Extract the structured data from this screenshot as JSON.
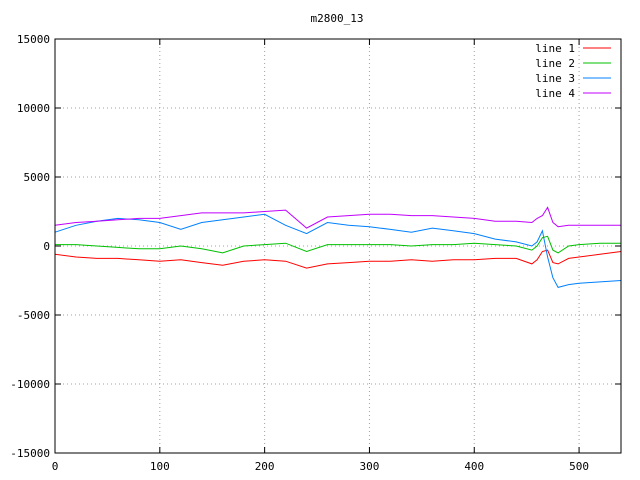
{
  "chart_data": {
    "type": "line",
    "title": "m2800_13",
    "xlabel": "",
    "ylabel": "",
    "xlim": [
      0,
      540
    ],
    "ylim": [
      -15000,
      15000
    ],
    "xticks": [
      "0",
      "100",
      "200",
      "300",
      "400",
      "500"
    ],
    "yticks": [
      "15000",
      "10000",
      "5000",
      "0",
      "-5000",
      "-10000",
      "-15000"
    ],
    "grid": true,
    "legend_position": "top-right",
    "colors": {
      "line1": "#ff0000",
      "line2": "#00c000",
      "line3": "#0080ff",
      "line4": "#c000ff"
    },
    "x": [
      0,
      20,
      40,
      60,
      80,
      100,
      120,
      140,
      160,
      180,
      200,
      220,
      240,
      260,
      280,
      300,
      320,
      340,
      360,
      380,
      400,
      420,
      440,
      455,
      460,
      465,
      470,
      475,
      480,
      490,
      500,
      520,
      540
    ],
    "series": [
      {
        "name": "line 1",
        "values": [
          -600,
          -800,
          -900,
          -900,
          -1000,
          -1100,
          -1000,
          -1200,
          -1400,
          -1100,
          -1000,
          -1100,
          -1600,
          -1300,
          -1200,
          -1100,
          -1100,
          -1000,
          -1100,
          -1000,
          -1000,
          -900,
          -900,
          -1300,
          -1000,
          -400,
          -300,
          -1200,
          -1300,
          -900,
          -800,
          -600,
          -400
        ]
      },
      {
        "name": "line 2",
        "values": [
          100,
          100,
          0,
          -100,
          -200,
          -200,
          0,
          -200,
          -500,
          0,
          100,
          200,
          -400,
          100,
          100,
          100,
          100,
          0,
          100,
          100,
          200,
          100,
          0,
          -300,
          0,
          600,
          700,
          -300,
          -500,
          0,
          100,
          200,
          200
        ]
      },
      {
        "name": "line 3",
        "values": [
          1000,
          1500,
          1800,
          2000,
          1900,
          1700,
          1200,
          1700,
          1900,
          2100,
          2300,
          1500,
          900,
          1700,
          1500,
          1400,
          1200,
          1000,
          1300,
          1100,
          900,
          500,
          300,
          0,
          300,
          1100,
          -800,
          -2300,
          -3000,
          -2800,
          -2700,
          -2600,
          -2500
        ]
      },
      {
        "name": "line 4",
        "values": [
          1500,
          1700,
          1800,
          1900,
          2000,
          2000,
          2200,
          2400,
          2400,
          2400,
          2500,
          2600,
          1300,
          2100,
          2200,
          2300,
          2300,
          2200,
          2200,
          2100,
          2000,
          1800,
          1800,
          1700,
          2000,
          2200,
          2800,
          1700,
          1400,
          1500,
          1500,
          1500,
          1500
        ]
      }
    ]
  }
}
